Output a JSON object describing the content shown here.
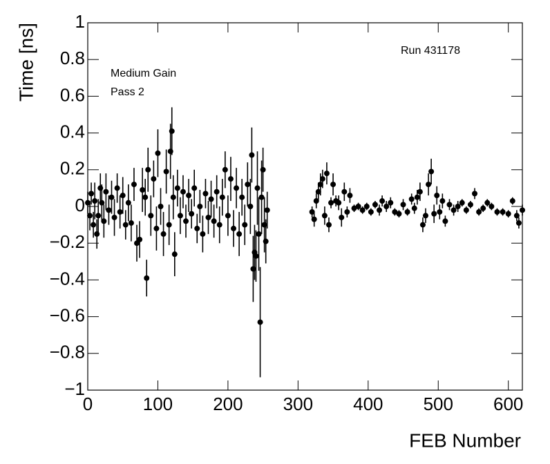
{
  "chart_data": {
    "type": "scatter",
    "annotations": [
      "Run 431178",
      "Medium Gain",
      "Pass 2"
    ],
    "xlabel": "FEB Number",
    "ylabel": "Time [ns]",
    "xlim": [
      0,
      620
    ],
    "ylim": [
      -1,
      1
    ],
    "xticks": [
      0,
      100,
      200,
      300,
      400,
      500,
      600
    ],
    "yticks": [
      {
        "value": -1,
        "label": "−1"
      },
      {
        "value": -0.8,
        "label": "−0.8"
      },
      {
        "value": -0.6,
        "label": "−0.6"
      },
      {
        "value": -0.4,
        "label": "−0.4"
      },
      {
        "value": -0.2,
        "label": "−0.2"
      },
      0,
      0.2,
      0.4,
      0.6,
      0.8,
      1
    ],
    "color": "#000000",
    "x": [
      0,
      3,
      5,
      8,
      10,
      13,
      15,
      18,
      20,
      23,
      26,
      30,
      34,
      38,
      42,
      46,
      50,
      54,
      58,
      62,
      66,
      70,
      74,
      78,
      82,
      84,
      86,
      90,
      94,
      98,
      100,
      104,
      108,
      112,
      116,
      118,
      120,
      122,
      124,
      128,
      132,
      136,
      140,
      144,
      148,
      152,
      156,
      160,
      164,
      168,
      172,
      176,
      180,
      184,
      188,
      192,
      196,
      200,
      204,
      208,
      212,
      216,
      220,
      224,
      228,
      232,
      234,
      236,
      238,
      240,
      242,
      244,
      246,
      248,
      250,
      252,
      254,
      256,
      320,
      323,
      326,
      329,
      332,
      335,
      338,
      341,
      344,
      347,
      350,
      354,
      358,
      362,
      366,
      370,
      374,
      380,
      386,
      392,
      398,
      404,
      410,
      416,
      420,
      426,
      432,
      438,
      444,
      450,
      456,
      462,
      466,
      470,
      474,
      478,
      482,
      486,
      490,
      494,
      498,
      502,
      506,
      510,
      516,
      522,
      528,
      534,
      540,
      546,
      552,
      558,
      564,
      570,
      576,
      584,
      592,
      600,
      606,
      612,
      615,
      620
    ],
    "values": [
      0.02,
      -0.05,
      0.07,
      -0.1,
      0.03,
      -0.15,
      -0.05,
      0.1,
      0.02,
      -0.08,
      0.08,
      -0.02,
      0.05,
      -0.06,
      0.1,
      -0.03,
      0.06,
      -0.1,
      0.02,
      -0.09,
      0.12,
      -0.2,
      -0.18,
      0.09,
      0.05,
      -0.39,
      0.2,
      -0.05,
      0.15,
      -0.12,
      0.29,
      0.0,
      -0.15,
      0.19,
      -0.1,
      0.3,
      0.41,
      0.05,
      -0.26,
      0.1,
      -0.05,
      0.08,
      -0.08,
      0.06,
      -0.04,
      0.1,
      -0.12,
      0.0,
      -0.15,
      0.07,
      -0.06,
      0.04,
      -0.08,
      0.08,
      -0.1,
      0.05,
      0.2,
      -0.05,
      0.15,
      -0.12,
      0.1,
      -0.15,
      0.05,
      -0.1,
      0.12,
      0.0,
      0.28,
      -0.34,
      -0.25,
      -0.27,
      0.1,
      -0.15,
      -0.63,
      0.05,
      0.2,
      -0.1,
      -0.19,
      -0.02,
      -0.03,
      -0.07,
      0.03,
      0.08,
      0.12,
      0.15,
      -0.05,
      0.18,
      -0.1,
      0.02,
      0.12,
      0.03,
      0.02,
      -0.06,
      0.08,
      -0.03,
      0.06,
      -0.01,
      0.0,
      -0.02,
      0.0,
      -0.03,
      0.01,
      -0.02,
      0.03,
      0.0,
      0.02,
      -0.03,
      -0.04,
      0.01,
      -0.03,
      0.04,
      -0.01,
      0.05,
      0.08,
      -0.1,
      -0.05,
      0.12,
      0.19,
      -0.04,
      0.06,
      -0.03,
      0.03,
      -0.08,
      0.01,
      -0.02,
      0.0,
      0.02,
      -0.02,
      0.01,
      0.07,
      -0.03,
      -0.01,
      0.02,
      0.0,
      -0.03,
      -0.03,
      -0.04,
      0.03,
      -0.05,
      -0.09,
      -0.02
    ],
    "errors": [
      0.06,
      0.08,
      0.06,
      0.07,
      0.1,
      0.08,
      0.09,
      0.08,
      0.1,
      0.09,
      0.1,
      0.08,
      0.09,
      0.1,
      0.08,
      0.09,
      0.1,
      0.08,
      0.1,
      0.1,
      0.09,
      0.1,
      0.1,
      0.12,
      0.1,
      0.1,
      0.12,
      0.11,
      0.1,
      0.12,
      0.13,
      0.1,
      0.12,
      0.12,
      0.11,
      0.15,
      0.13,
      0.12,
      0.12,
      0.1,
      0.1,
      0.09,
      0.09,
      0.09,
      0.08,
      0.1,
      0.08,
      0.09,
      0.1,
      0.08,
      0.09,
      0.1,
      0.09,
      0.09,
      0.1,
      0.1,
      0.1,
      0.11,
      0.12,
      0.1,
      0.11,
      0.12,
      0.1,
      0.11,
      0.12,
      0.15,
      0.15,
      0.18,
      0.15,
      0.14,
      0.2,
      0.2,
      0.3,
      0.2,
      0.12,
      0.15,
      0.12,
      0.1,
      0.03,
      0.04,
      0.04,
      0.05,
      0.06,
      0.05,
      0.05,
      0.06,
      0.04,
      0.03,
      0.06,
      0.03,
      0.04,
      0.05,
      0.05,
      0.03,
      0.04,
      0.02,
      0.02,
      0.02,
      0.02,
      0.02,
      0.02,
      0.03,
      0.03,
      0.03,
      0.03,
      0.02,
      0.02,
      0.03,
      0.02,
      0.03,
      0.03,
      0.04,
      0.05,
      0.04,
      0.04,
      0.06,
      0.07,
      0.05,
      0.05,
      0.04,
      0.04,
      0.03,
      0.03,
      0.03,
      0.03,
      0.02,
      0.02,
      0.02,
      0.03,
      0.02,
      0.02,
      0.02,
      0.02,
      0.02,
      0.02,
      0.02,
      0.02,
      0.03,
      0.03,
      0.03
    ]
  }
}
